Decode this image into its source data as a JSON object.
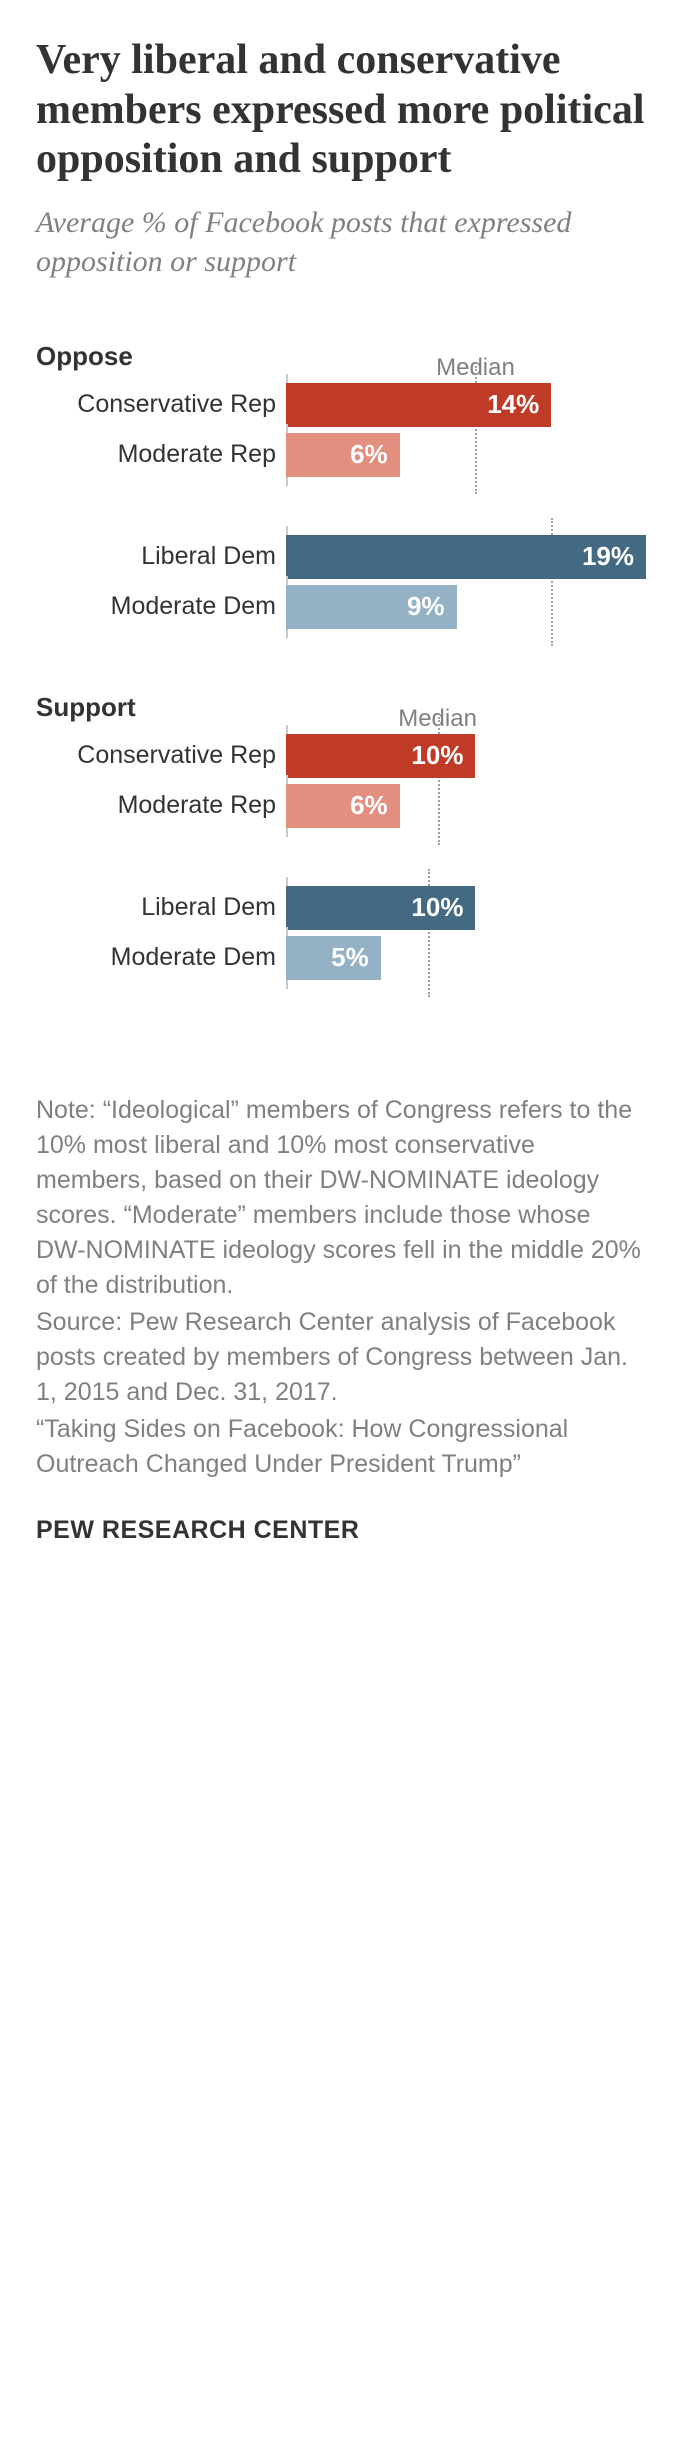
{
  "title": "Very liberal and conservative members expressed more political opposition and support",
  "subtitle": "Average % of Facebook posts that expressed opposition or support",
  "title_fontsize": 42,
  "subtitle_fontsize": 30,
  "section_label_fontsize": 26,
  "row_label_fontsize": 25,
  "median_label_fontsize": 24,
  "bar_value_fontsize": 26,
  "footer_fontsize": 25,
  "attribution_fontsize": 25,
  "label_col_width": 250,
  "colors": {
    "cons_rep": "#bf3b27",
    "mod_rep": "#e38f80",
    "lib_dem": "#436983",
    "mod_dem": "#94b1c6",
    "axis": "#c9c9c9",
    "median_line": "#a0a0a0",
    "text_dark": "#333333",
    "text_gray": "#808080",
    "bg": "#ffffff"
  },
  "sections": [
    {
      "label": "Oppose",
      "median_label": "Median",
      "max": 19,
      "groups": [
        {
          "median": 10,
          "rows": [
            {
              "label": "Conservative Rep",
              "value": 14,
              "value_text": "14%",
              "color": "#bf3b27"
            },
            {
              "label": "Moderate Rep",
              "value": 6,
              "value_text": "6%",
              "color": "#e38f80"
            }
          ]
        },
        {
          "median": 14,
          "rows": [
            {
              "label": "Liberal Dem",
              "value": 19,
              "value_text": "19%",
              "color": "#436983"
            },
            {
              "label": "Moderate Dem",
              "value": 9,
              "value_text": "9%",
              "color": "#94b1c6"
            }
          ]
        }
      ]
    },
    {
      "label": "Support",
      "median_label": "Median",
      "max": 19,
      "groups": [
        {
          "median": 8,
          "rows": [
            {
              "label": "Conservative Rep",
              "value": 10,
              "value_text": "10%",
              "color": "#bf3b27"
            },
            {
              "label": "Moderate Rep",
              "value": 6,
              "value_text": "6%",
              "color": "#e38f80"
            }
          ]
        },
        {
          "median": 7.5,
          "rows": [
            {
              "label": "Liberal Dem",
              "value": 10,
              "value_text": "10%",
              "color": "#436983"
            },
            {
              "label": "Moderate Dem",
              "value": 5,
              "value_text": "5%",
              "color": "#94b1c6"
            }
          ]
        }
      ]
    }
  ],
  "note": "Note: “Ideological” members of Congress refers to the 10% most liberal and 10% most conservative members, based on their DW-NOMINATE ideology scores. “Moderate” members include those whose DW-NOMINATE ideology scores fell in the middle 20% of the distribution.",
  "source": "Source: Pew Research Center analysis of Facebook posts created by members of Congress between Jan. 1, 2015 and Dec. 31, 2017.",
  "report": "“Taking Sides on Facebook: How Congressional Outreach Changed Under President Trump”",
  "attribution": "PEW RESEARCH CENTER"
}
